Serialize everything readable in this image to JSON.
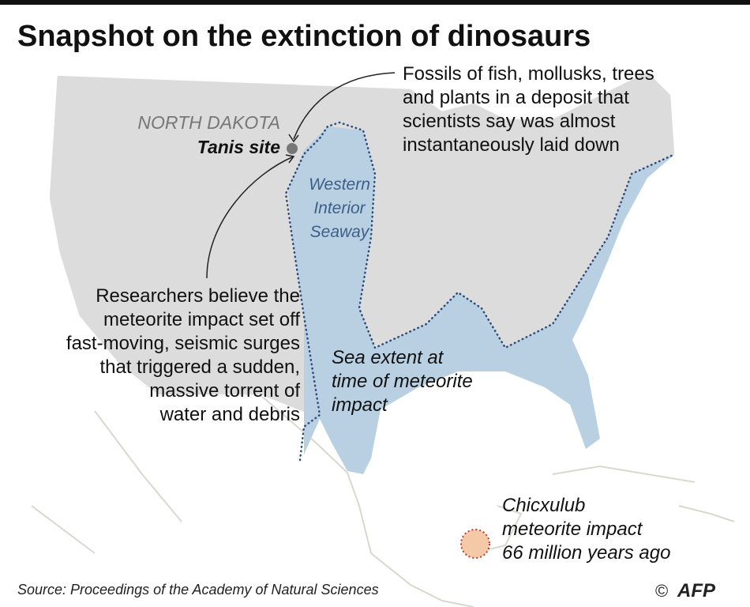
{
  "title": "Snapshot on the extinction of dinosaurs",
  "labels": {
    "state": "NORTH DAKOTA",
    "site": "Tanis site",
    "seaway": [
      "Western",
      "Interior",
      "Seaway"
    ],
    "sea_extent": [
      "Sea extent at",
      "time of meteorite",
      "impact"
    ],
    "impact": [
      "Chicxulub",
      "meteorite impact",
      "66 million years ago"
    ]
  },
  "annotations": {
    "fossils": [
      "Fossils of fish, mollusks, trees",
      "and plants in a deposit that",
      "scientists say was almost",
      "instantaneously laid down"
    ],
    "researchers": [
      "Researchers believe the",
      "meteorite impact set off",
      "fast-moving, seismic surges",
      "that triggered a sudden,",
      "massive torrent of",
      "water and debris"
    ]
  },
  "footer": {
    "source": "Source: Proceedings of the Academy of Natural Sciences",
    "copyright": "©",
    "logo": "AFP"
  }
}
